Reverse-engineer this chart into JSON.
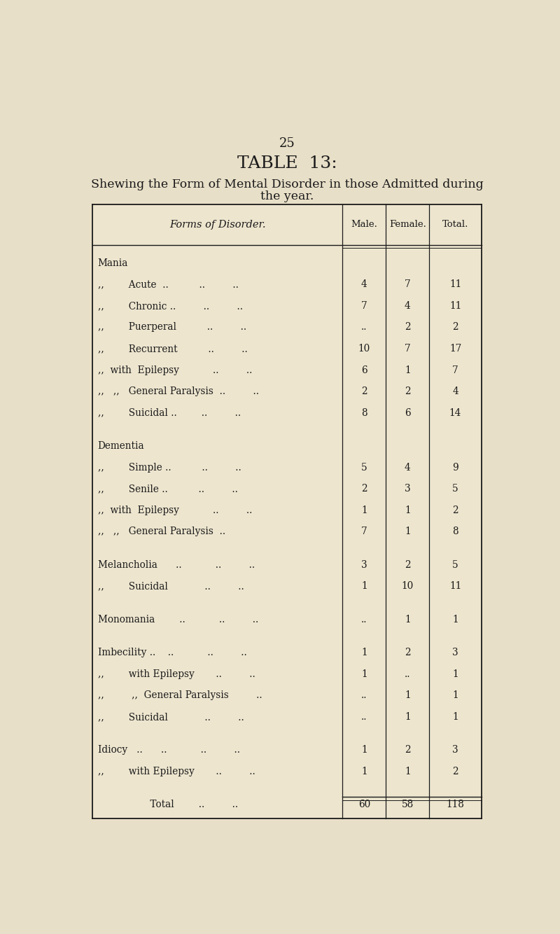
{
  "page_number": "25",
  "title": "TABLE  13:",
  "subtitle1": "Shewing the Form of Mental Disorder in those Admitted during",
  "subtitle2": "the year.",
  "bg_color": "#e8dfc8",
  "table_bg": "#ede5ce",
  "col_headers": [
    "Forms of Disorder.",
    "Male.",
    "Female.",
    "Total."
  ],
  "rows": [
    {
      "label": "Mania",
      "indent": 0,
      "male": "",
      "female": "",
      "total": "",
      "section_head": true
    },
    {
      "label": ",,        Acute  ..          ..         ..",
      "indent": 1,
      "male": "4",
      "female": "7",
      "total": "11"
    },
    {
      "label": ",,        Chronic ..         ..         ..",
      "indent": 1,
      "male": "7",
      "female": "4",
      "total": "11"
    },
    {
      "label": ",,        Puerperal          ..         ..",
      "indent": 1,
      "male": "..",
      "female": "2",
      "total": "2"
    },
    {
      "label": ",,        Recurrent          ..         ..",
      "indent": 1,
      "male": "10",
      "female": "7",
      "total": "17"
    },
    {
      "label": ",,  with  Epilepsy           ..         ..",
      "indent": 1,
      "male": "6",
      "female": "1",
      "total": "7"
    },
    {
      "label": ",,   ,,   General Paralysis  ..         ..",
      "indent": 1,
      "male": "2",
      "female": "2",
      "total": "4"
    },
    {
      "label": ",,        Suicidal ..        ..         ..",
      "indent": 1,
      "male": "8",
      "female": "6",
      "total": "14"
    },
    {
      "label": "",
      "indent": 0,
      "male": "",
      "female": "",
      "total": "",
      "spacer": true
    },
    {
      "label": "Dementia",
      "indent": 0,
      "male": "",
      "female": "",
      "total": "",
      "section_head": true
    },
    {
      "label": ",,        Simple ..          ..         ..",
      "indent": 1,
      "male": "5",
      "female": "4",
      "total": "9"
    },
    {
      "label": ",,        Senile ..          ..         ..",
      "indent": 1,
      "male": "2",
      "female": "3",
      "total": "5"
    },
    {
      "label": ",,  with  Epilepsy           ..         ..",
      "indent": 1,
      "male": "1",
      "female": "1",
      "total": "2"
    },
    {
      "label": ",,   ,,   General Paralysis  ..",
      "indent": 1,
      "male": "7",
      "female": "1",
      "total": "8"
    },
    {
      "label": "",
      "indent": 0,
      "male": "",
      "female": "",
      "total": "",
      "spacer": true
    },
    {
      "label": "Melancholia      ..           ..         ..",
      "indent": 0,
      "male": "3",
      "female": "2",
      "total": "5"
    },
    {
      "label": ",,        Suicidal            ..         ..",
      "indent": 1,
      "male": "1",
      "female": "10",
      "total": "11"
    },
    {
      "label": "",
      "indent": 0,
      "male": "",
      "female": "",
      "total": "",
      "spacer": true
    },
    {
      "label": "Monomania        ..           ..         ..",
      "indent": 0,
      "male": "..",
      "female": "1",
      "total": "1"
    },
    {
      "label": "",
      "indent": 0,
      "male": "",
      "female": "",
      "total": "",
      "spacer": true
    },
    {
      "label": "Imbecility ..    ..           ..         ..",
      "indent": 0,
      "male": "1",
      "female": "2",
      "total": "3"
    },
    {
      "label": ",,        with Epilepsy       ..         ..",
      "indent": 1,
      "male": "1",
      "female": "..",
      "total": "1"
    },
    {
      "label": ",,         ,,  General Paralysis         ..",
      "indent": 1,
      "male": "..",
      "female": "1",
      "total": "1"
    },
    {
      "label": ",,        Suicidal            ..         ..",
      "indent": 1,
      "male": "..",
      "female": "1",
      "total": "1"
    },
    {
      "label": "",
      "indent": 0,
      "male": "",
      "female": "",
      "total": "",
      "spacer": true
    },
    {
      "label": "Idiocy   ..      ..           ..         ..",
      "indent": 0,
      "male": "1",
      "female": "2",
      "total": "3"
    },
    {
      "label": ",,        with Epilepsy       ..         ..",
      "indent": 1,
      "male": "1",
      "female": "1",
      "total": "2"
    },
    {
      "label": "",
      "indent": 0,
      "male": "",
      "female": "",
      "total": "",
      "spacer": true
    },
    {
      "label": "                 Total        ..         ..",
      "indent": 0,
      "male": "60",
      "female": "58",
      "total": "118",
      "total_row": true
    }
  ]
}
